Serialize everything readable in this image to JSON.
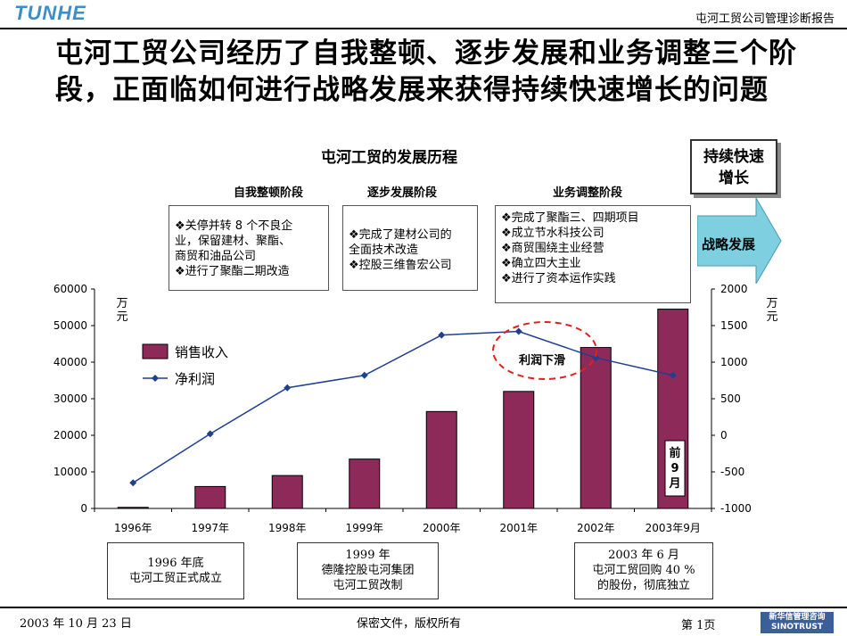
{
  "header": {
    "logo": "TUNHE",
    "title": "屯河工贸公司管理诊断报告"
  },
  "page_title": "屯河工贸公司经历了自我整顿、逐步发展和业务调整三个阶段，正面临如何进行战略发展来获得持续快速增长的问题",
  "stages": [
    {
      "label": "自我整顿阶段",
      "items": [
        "❖关停并转 8 个不良企",
        "业，保留建材、聚酯、",
        "商贸和油品公司",
        "❖进行了聚酯二期改造"
      ]
    },
    {
      "label": "逐步发展阶段",
      "items": [
        "❖完成了建材公司的",
        "全面技术改造",
        "❖控股三维鲁宏公司"
      ]
    },
    {
      "label": "业务调整阶段",
      "items": [
        "❖完成了聚酯三、四期项目",
        "❖成立节水科技公司",
        "❖商贸围绕主业经营",
        "❖确立四大主业",
        "❖进行了资本运作实践"
      ]
    }
  ],
  "goal": {
    "line1": "持续快速",
    "line2": "增长"
  },
  "arrow_label": "战略发展",
  "annotation": {
    "profit_drop": "利润下滑",
    "partial_year": "前9月"
  },
  "milestones": [
    {
      "line1": "1996 年底",
      "line2": "屯河工贸正式成立"
    },
    {
      "line1": "1999 年",
      "line2": "德隆控股屯河集团",
      "line3": "屯河工贸改制"
    },
    {
      "line1": "2003 年 6 月",
      "line2": "屯河工贸回购 40 %",
      "line3": "的股份，彻底独立"
    }
  ],
  "footer": {
    "date": "2003 年 10 月 23 日",
    "confidential": "保密文件，版权所有",
    "page": "第 1页",
    "brand_cn": "新华信管理咨询",
    "brand_en": "SINOTRUST"
  },
  "colors": {
    "bar": "#8e2a5a",
    "line": "#1f3f8f",
    "ellipse": "#e02020",
    "arrow": "#7ecfe0"
  },
  "chart_data": {
    "type": "bar",
    "title": "屯河工贸的发展历程",
    "categories": [
      "1996年",
      "1997年",
      "1998年",
      "1999年",
      "2000年",
      "2001年",
      "2002年",
      "2003年9月"
    ],
    "series": [
      {
        "name": "销售收入",
        "type": "bar",
        "axis": "left",
        "values": [
          300,
          6000,
          9000,
          13500,
          26500,
          32000,
          44000,
          54500
        ]
      },
      {
        "name": "净利润",
        "type": "line",
        "axis": "right",
        "values": [
          -650,
          20,
          650,
          820,
          1370,
          1420,
          1060,
          820
        ]
      }
    ],
    "y_left": {
      "label": "万元",
      "min": 0,
      "max": 60000,
      "ticks": [
        0,
        10000,
        20000,
        30000,
        40000,
        50000,
        60000
      ]
    },
    "y_right": {
      "label": "万元",
      "min": -1000,
      "max": 2000,
      "ticks": [
        -1000,
        -500,
        0,
        500,
        1000,
        1500,
        2000
      ]
    },
    "legend": "left"
  }
}
